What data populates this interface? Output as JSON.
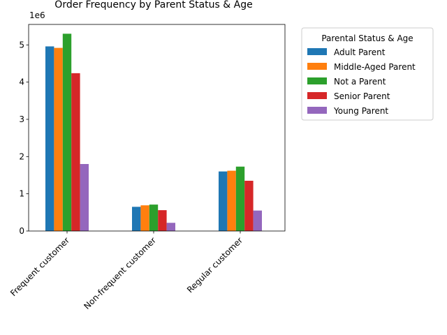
{
  "chart_data": {
    "type": "bar",
    "title": "Order Frequency by Parent Status & Age",
    "xlabel": "",
    "ylabel": "",
    "y_offset_label": "1e6",
    "y_scale": 1000000,
    "ylim": [
      0,
      5.55
    ],
    "yticks": [
      0,
      1,
      2,
      3,
      4,
      5
    ],
    "grid": false,
    "categories": [
      "Frequent customer",
      "Non-frequent customer",
      "Regular customer"
    ],
    "series": [
      {
        "name": "Adult Parent",
        "color": "#1f77b4",
        "values": [
          4.96,
          0.65,
          1.6
        ]
      },
      {
        "name": "Middle-Aged Parent",
        "color": "#ff7f0e",
        "values": [
          4.92,
          0.69,
          1.62
        ]
      },
      {
        "name": "Not a Parent",
        "color": "#2ca02c",
        "values": [
          5.3,
          0.71,
          1.73
        ]
      },
      {
        "name": "Senior Parent",
        "color": "#d62728",
        "values": [
          4.24,
          0.56,
          1.35
        ]
      },
      {
        "name": "Young Parent",
        "color": "#9467bd",
        "values": [
          1.8,
          0.22,
          0.55
        ]
      }
    ],
    "legend": {
      "title": "Parental Status & Age",
      "placement": "outside-right-top"
    }
  }
}
